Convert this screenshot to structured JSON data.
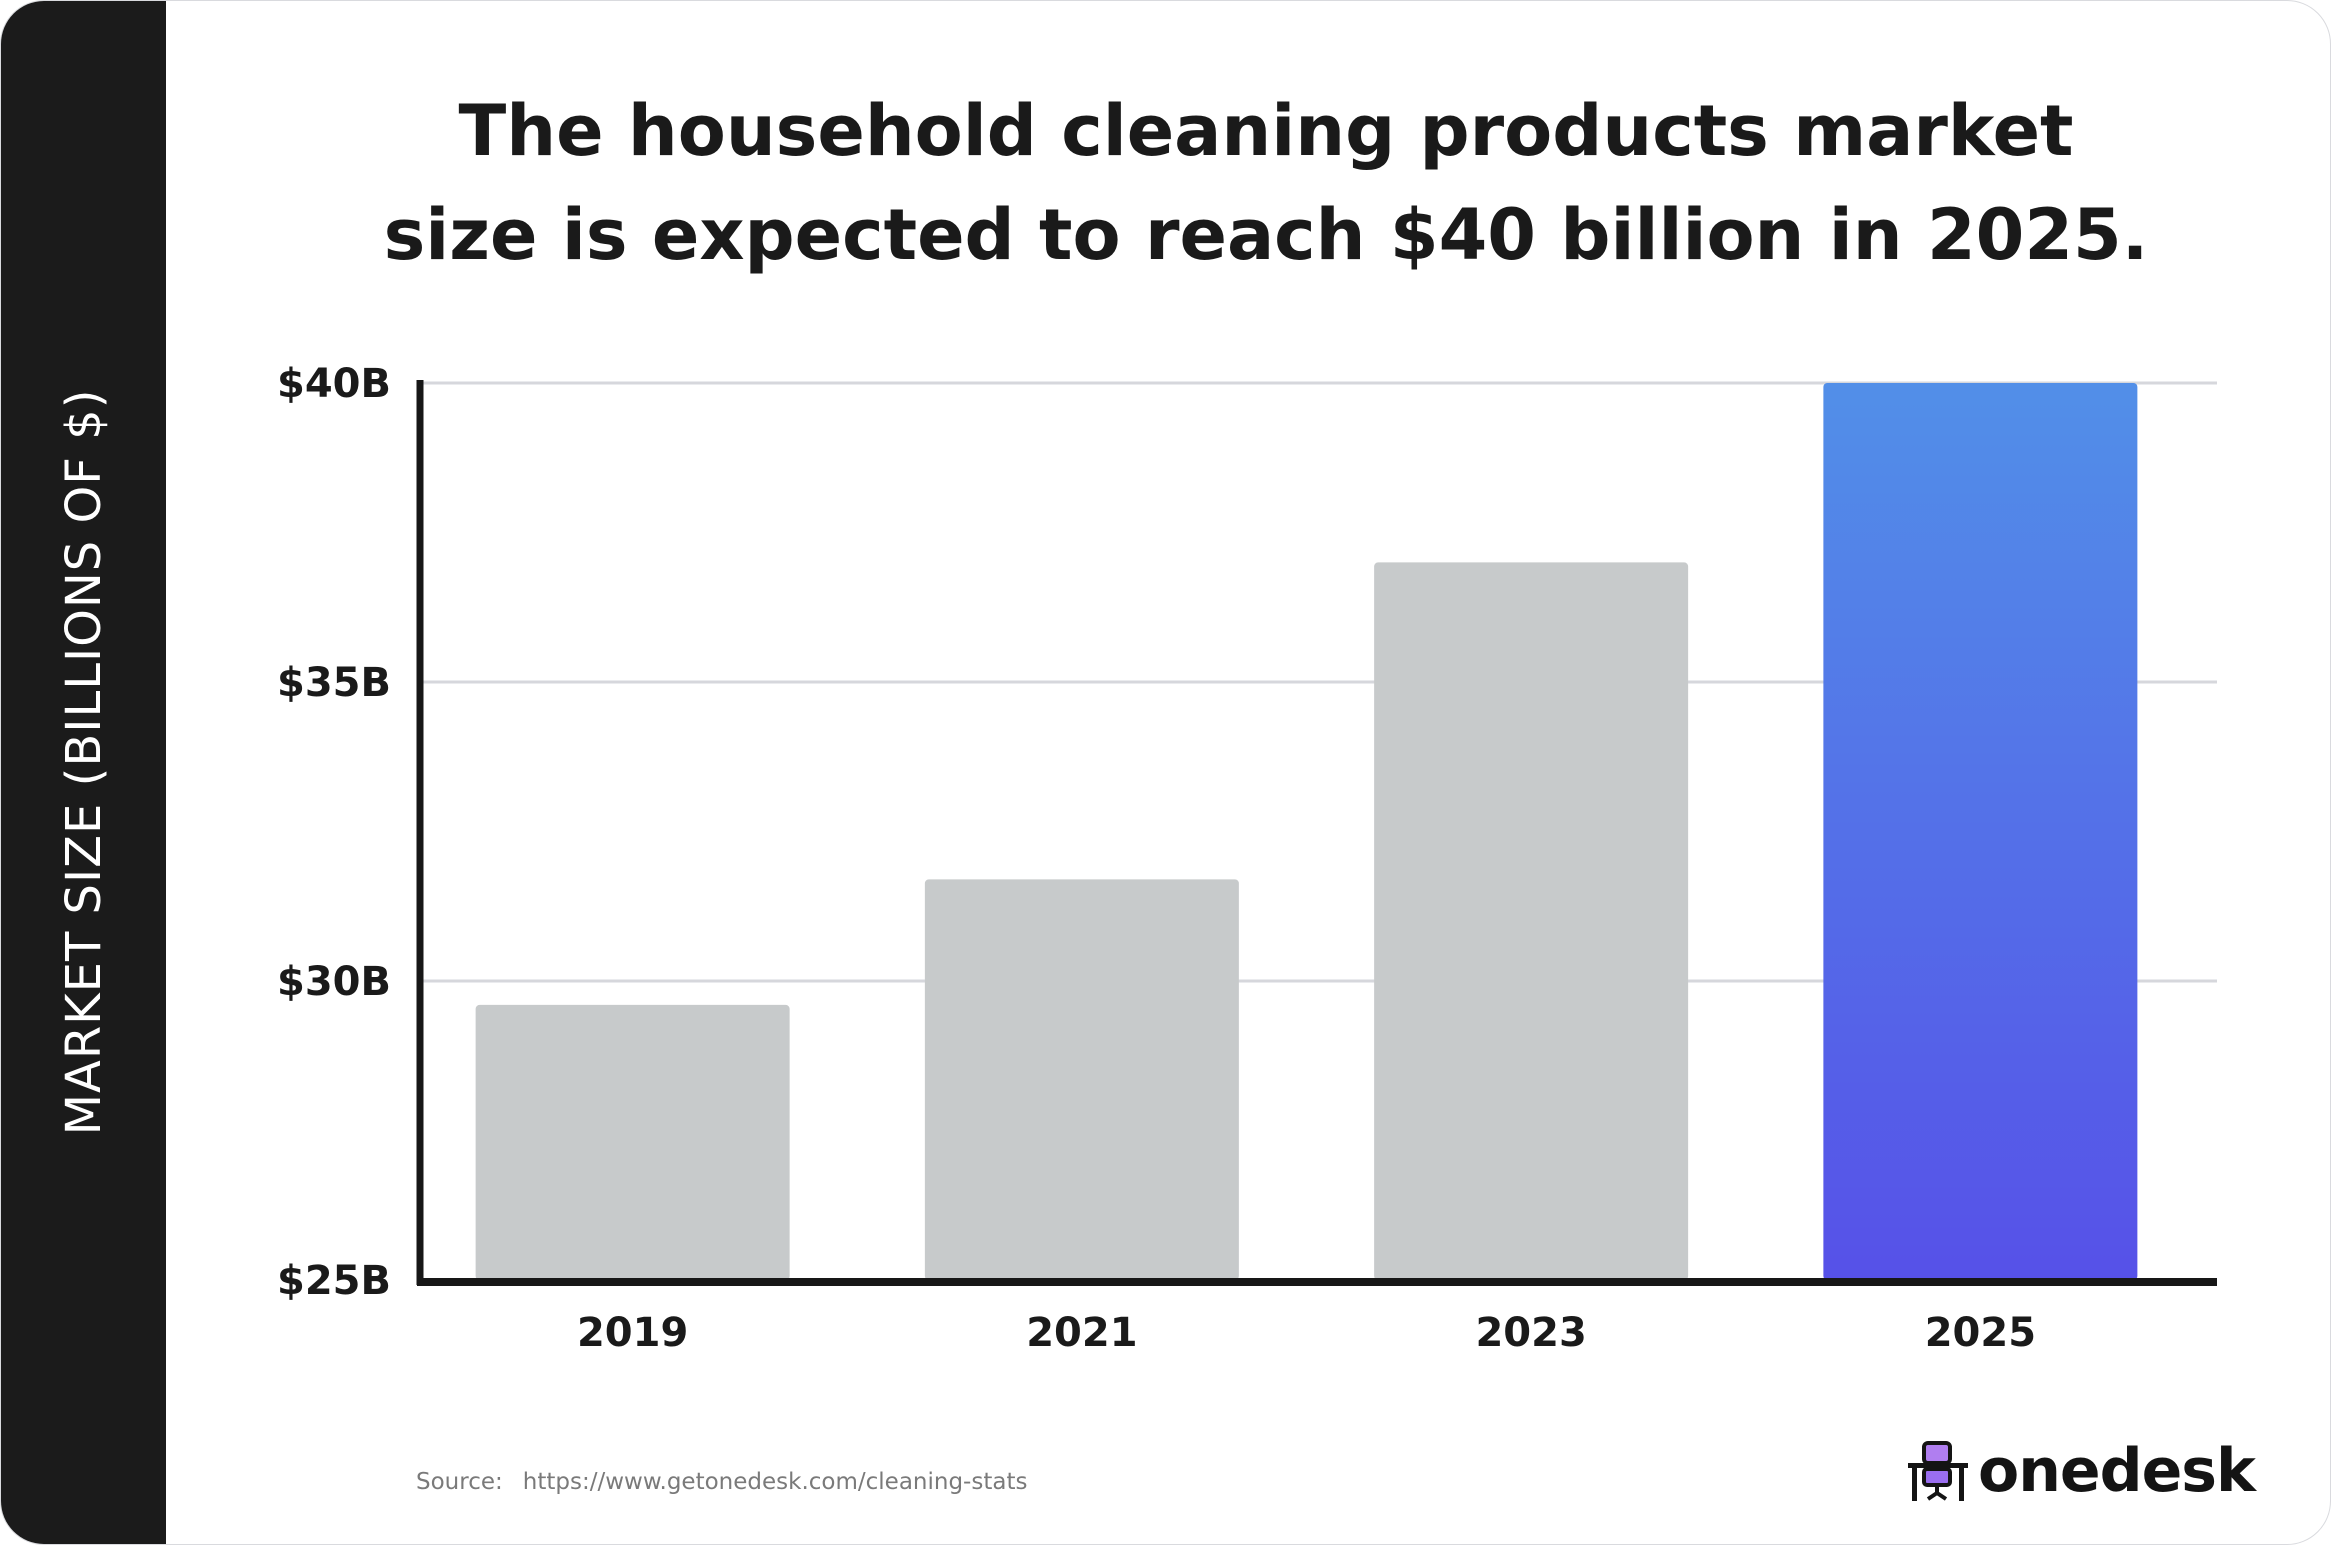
{
  "chart_data": {
    "type": "bar",
    "title": "The household cleaning products market size is expected to reach $40 billion in 2025.",
    "title_lines": [
      "The household cleaning products market",
      "size is expected to reach $40 billion in 2025."
    ],
    "xlabel": "",
    "ylabel": "MARKET SIZE (BILLIONS OF $)",
    "categories": [
      "2019",
      "2021",
      "2023",
      "2025"
    ],
    "values": [
      29.6,
      31.7,
      37.0,
      40.0
    ],
    "unit": "billion USD",
    "ylim": [
      25,
      40
    ],
    "yticks": [
      25,
      30,
      35,
      40
    ],
    "ytick_labels": [
      "$25B",
      "$30B",
      "$35B",
      "$40B"
    ],
    "grid": true,
    "colors": {
      "default": "#c7cacb",
      "highlight_top": "#528fe8",
      "highlight_bottom": "#5651e8"
    },
    "highlight": "2025"
  },
  "source": {
    "label": "Source:",
    "url": "https://www.getonedesk.com/cleaning-stats"
  },
  "logo": {
    "text": "onedesk",
    "icon": "desk-chair-icon",
    "accent": "#b07ef0"
  }
}
